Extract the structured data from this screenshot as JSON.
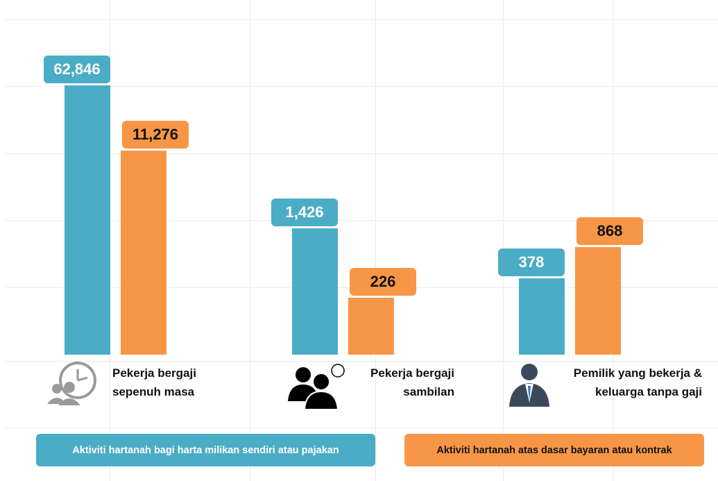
{
  "chart_data": {
    "type": "bar",
    "categories": [
      "Pekerja bergaji sepenuh masa",
      "Pekerja bergaji sambilan",
      "Pemilik yang bekerja & keluarga tanpa gaji"
    ],
    "series": [
      {
        "name": "Aktiviti  hartanah bagi harta milikan sendiri atau pajakan",
        "color": "#4bacc6",
        "values": [
          62846,
          1426,
          378
        ],
        "value_labels": [
          "62,846",
          "1,426",
          "378"
        ]
      },
      {
        "name": "Aktiviti  hartanah atas dasar bayaran atau kontrak",
        "color": "#f79646",
        "values": [
          11276,
          226,
          868
        ],
        "value_labels": [
          "11,276",
          "226",
          "868"
        ]
      }
    ],
    "log_scale": true,
    "ylim": [
      50,
      100000
    ],
    "grid": true
  }
}
